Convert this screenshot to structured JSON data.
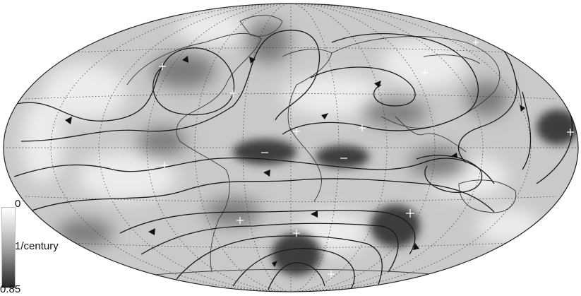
{
  "colorbar": {
    "max_label": "0",
    "unit_label": "1/century",
    "min_label": "0.85",
    "gradient": [
      "#ffffff",
      "#d8d8d8",
      "#9a9a9a",
      "#4a4a4a",
      "#262626"
    ]
  },
  "map": {
    "projection": "mollweide",
    "graticule": "dotted",
    "colors": {
      "ocean_fill": "#c9c9c9",
      "coast": "#3a3a3a",
      "streamline": "#1a1a1a",
      "marker": "#ffffff"
    }
  }
}
